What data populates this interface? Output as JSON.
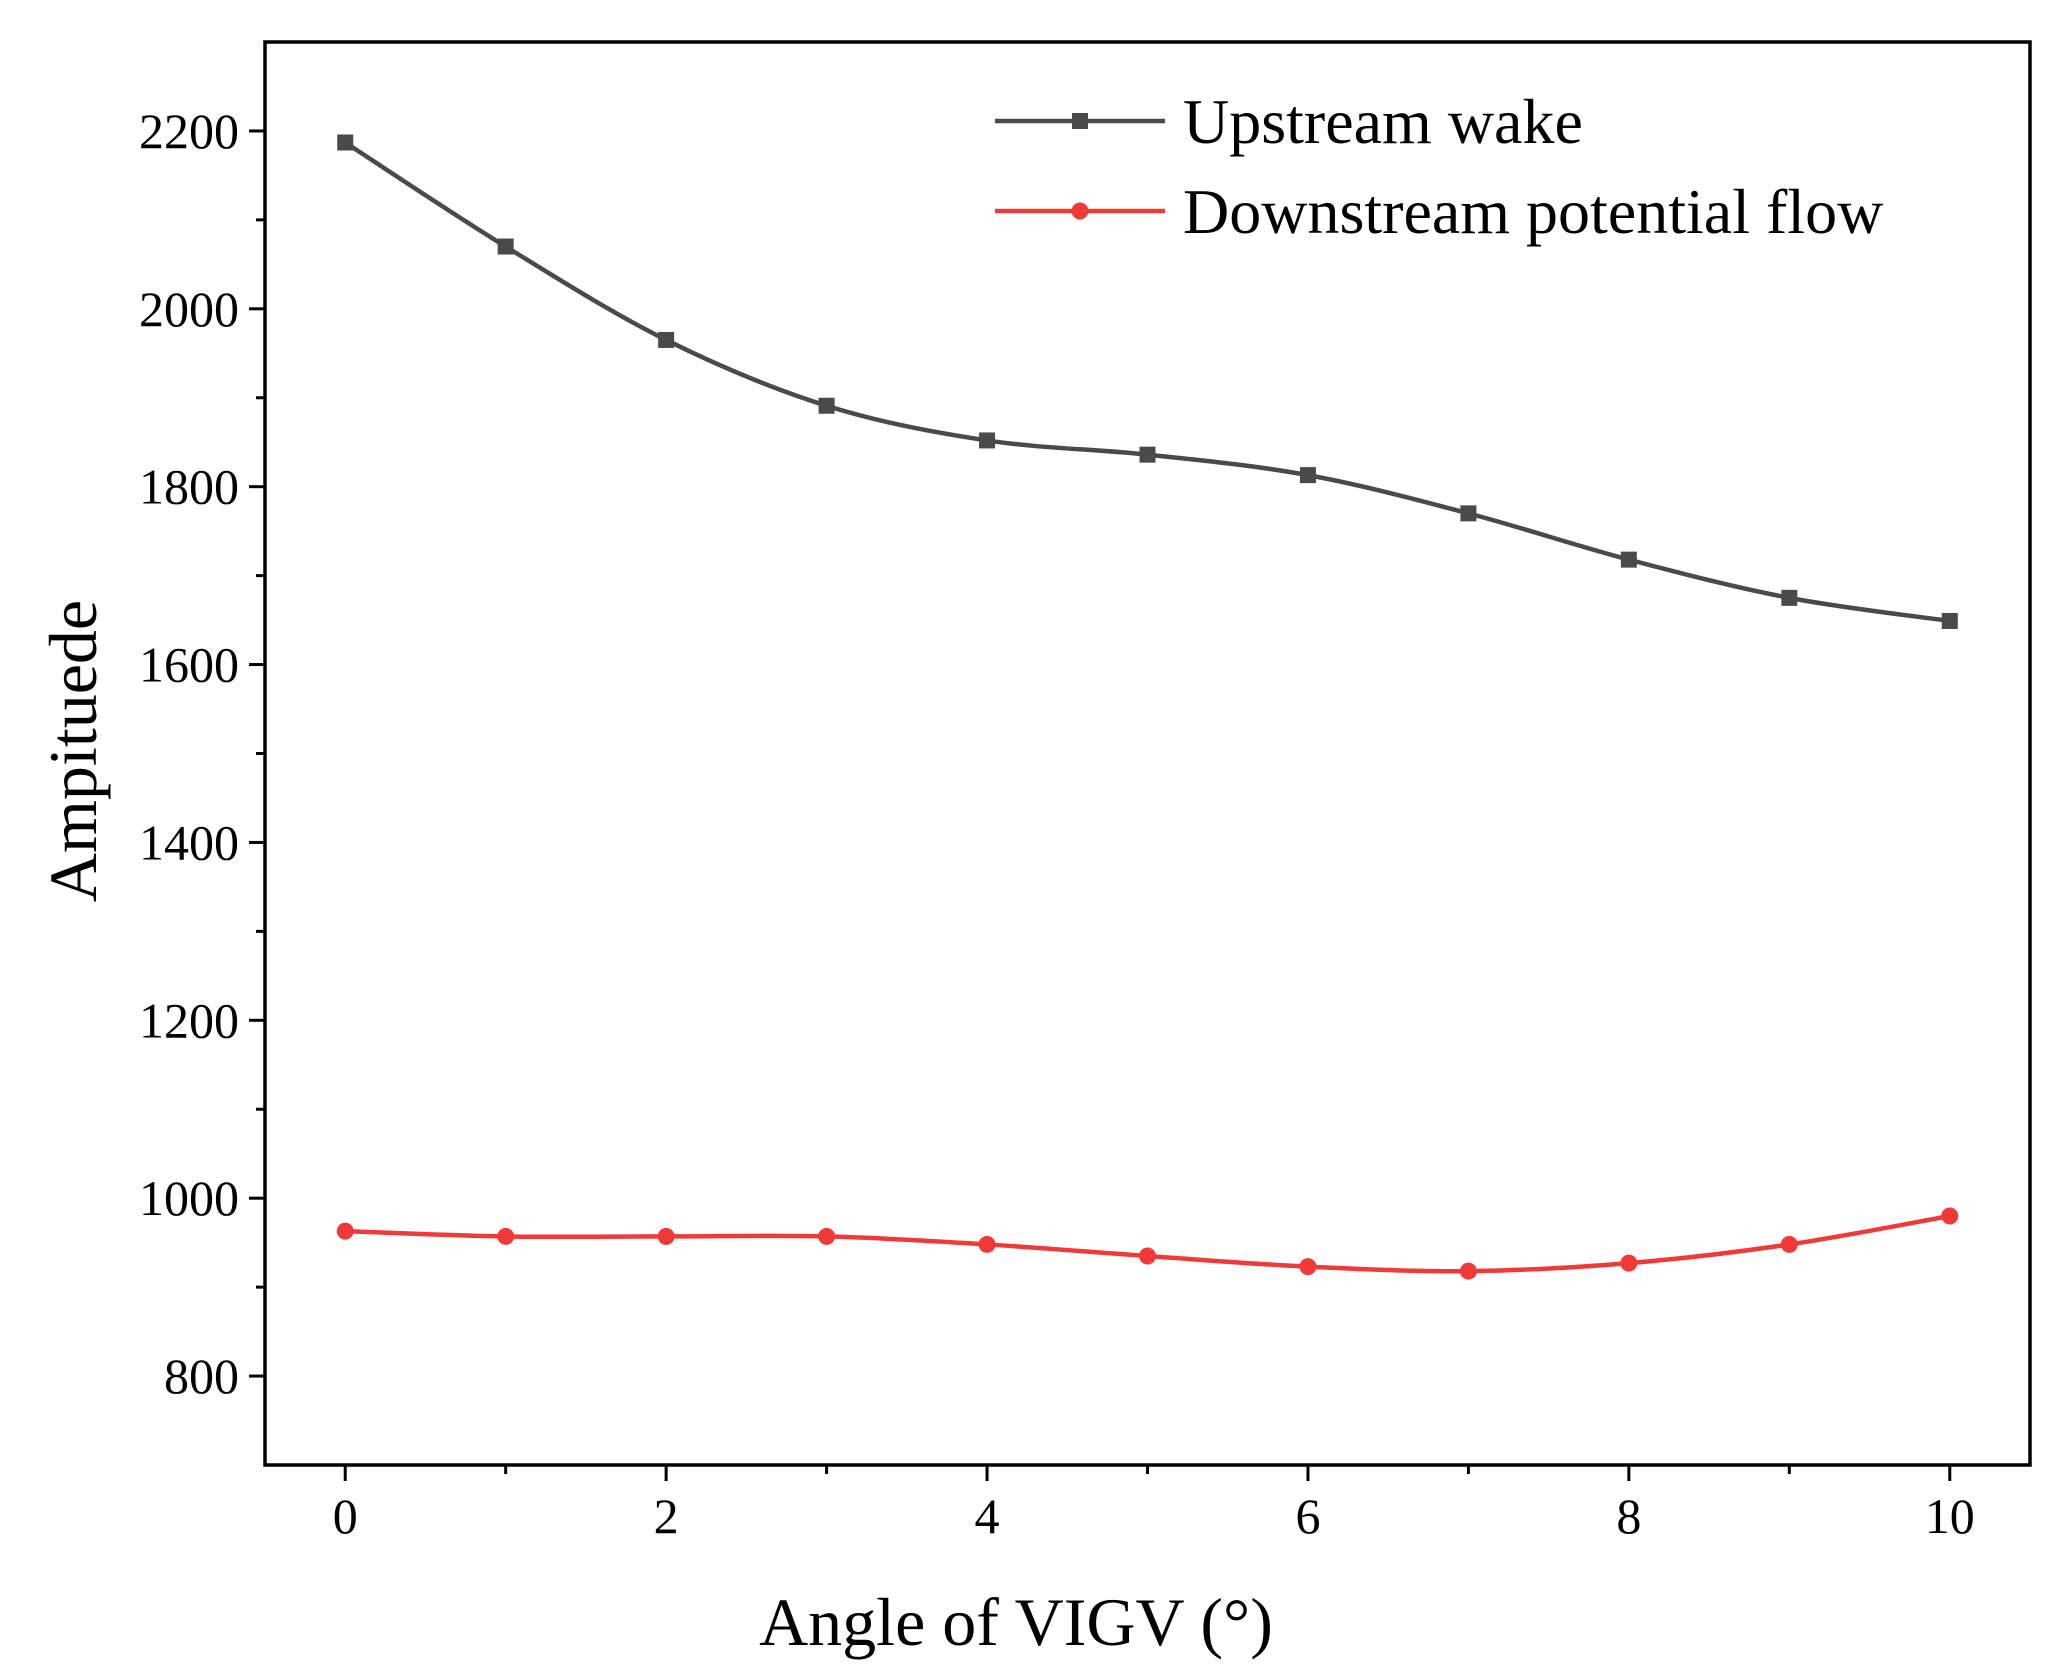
{
  "chart_data": {
    "type": "line",
    "title": "",
    "xlabel": "Angle of VIGV (°)",
    "ylabel": "Ampituede",
    "x": [
      0,
      1,
      2,
      3,
      4,
      5,
      6,
      7,
      8,
      9,
      10
    ],
    "xlim": [
      -0.5,
      10.5
    ],
    "ylim": [
      700,
      2300
    ],
    "x_ticks": [
      0,
      2,
      4,
      6,
      8,
      10
    ],
    "x_tick_labels": [
      "0",
      "2",
      "4",
      "6",
      "8",
      "10"
    ],
    "x_minor_ticks": [
      1,
      3,
      5,
      7,
      9
    ],
    "y_ticks": [
      800,
      1000,
      1200,
      1400,
      1600,
      1800,
      2000,
      2200
    ],
    "y_tick_labels": [
      "800",
      "1000",
      "1200",
      "1400",
      "1600",
      "1800",
      "2000",
      "2200"
    ],
    "y_minor_ticks": [
      900,
      1100,
      1300,
      1500,
      1700,
      1900,
      2100
    ],
    "grid": false,
    "legend_position": "top-right",
    "series": [
      {
        "name": "Upstream wake",
        "color": "#4a4a4a",
        "marker": "square",
        "values": [
          2187,
          2070,
          1965,
          1891,
          1852,
          1836,
          1813,
          1770,
          1718,
          1675,
          1649
        ]
      },
      {
        "name": "Downstream potential flow",
        "color": "#f03a3a",
        "marker": "circle",
        "values": [
          963,
          957,
          957,
          957,
          948,
          935,
          923,
          918,
          927,
          948,
          980
        ]
      }
    ]
  }
}
